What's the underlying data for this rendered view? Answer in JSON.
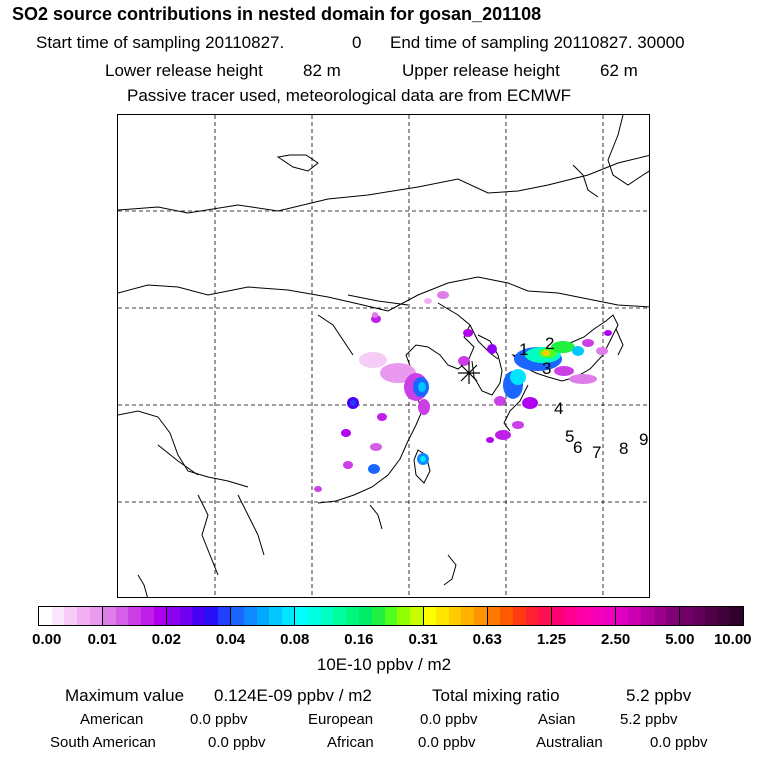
{
  "header": {
    "title": "SO2 source contributions in nested domain for gosan_201108",
    "start_label": "Start time of sampling 20110827.",
    "start_value": "0",
    "end_label": "End time of sampling 20110827. 30000",
    "lower_label": "Lower release height",
    "lower_value": "82 m",
    "upper_label": "Upper release height",
    "upper_value": "62 m",
    "tracer_note": "Passive tracer used, meteorological data are from ECMWF"
  },
  "map": {
    "receptor_marker": "asterisk-icon",
    "trajectory_labels": [
      "1",
      "2",
      "3",
      "4",
      "5",
      "6",
      "7",
      "8",
      "9"
    ]
  },
  "colorbar": {
    "tick_labels": [
      "0.00",
      "0.01",
      "0.02",
      "0.04",
      "0.08",
      "0.16",
      "0.31",
      "0.63",
      "1.25",
      "2.50",
      "5.00",
      "10.00"
    ],
    "units": "10E-10 ppbv / m2",
    "colors": [
      [
        "#ffffff",
        "#fbe6fb",
        "#f6ccf6",
        "#f0b0f2",
        "#e99aee"
      ],
      [
        "#e07ee9",
        "#d65fe7",
        "#cc3fe6",
        "#c01fea",
        "#b000f2"
      ],
      [
        "#8f00f2",
        "#7100f3",
        "#4a00f5",
        "#2a10f7",
        "#2040ff"
      ],
      [
        "#1a66ff",
        "#1088ff",
        "#00a8ff",
        "#00c8ff",
        "#00e6ff"
      ],
      [
        "#00ffff",
        "#00ffe0",
        "#00ffc0",
        "#00ffa0",
        "#00f880"
      ],
      [
        "#00ee66",
        "#20f040",
        "#50ff20",
        "#90ff00",
        "#c8ff00"
      ],
      [
        "#ffff00",
        "#ffe600",
        "#ffcc00",
        "#ffb000",
        "#ff9400"
      ],
      [
        "#ff7800",
        "#ff5a00",
        "#ff3a10",
        "#ff2030",
        "#ff1050"
      ],
      [
        "#ff0070",
        "#ff0090",
        "#ff00a8",
        "#f800b8",
        "#ee00bf"
      ],
      [
        "#e000c0",
        "#cc00b0",
        "#b400a0",
        "#9c008c",
        "#820075"
      ],
      [
        "#700066",
        "#600058",
        "#500048",
        "#40003a",
        "#30002c"
      ]
    ]
  },
  "stats": {
    "max_label": "Maximum value",
    "max_value": "0.124E-09 ppbv / m2",
    "total_label": "Total mixing ratio",
    "total_value": "5.2 ppbv"
  },
  "regions": [
    {
      "name": "American",
      "value": "0.0 ppbv"
    },
    {
      "name": "European",
      "value": "0.0 ppbv"
    },
    {
      "name": "Asian",
      "value": "5.2 ppbv"
    },
    {
      "name": "South American",
      "value": "0.0 ppbv"
    },
    {
      "name": "African",
      "value": "0.0 ppbv"
    },
    {
      "name": "Australian",
      "value": "0.0 ppbv"
    }
  ]
}
